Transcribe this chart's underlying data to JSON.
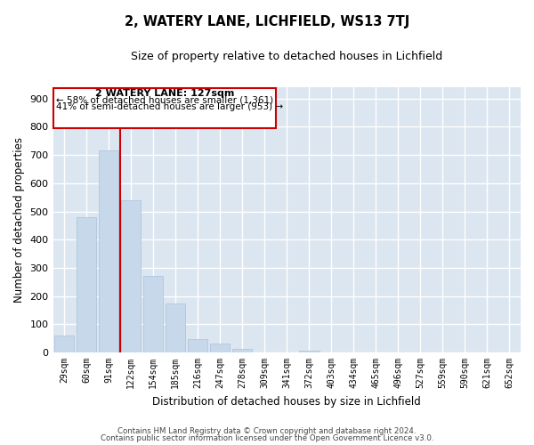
{
  "title": "2, WATERY LANE, LICHFIELD, WS13 7TJ",
  "subtitle": "Size of property relative to detached houses in Lichfield",
  "xlabel": "Distribution of detached houses by size in Lichfield",
  "ylabel": "Number of detached properties",
  "bar_labels": [
    "29sqm",
    "60sqm",
    "91sqm",
    "122sqm",
    "154sqm",
    "185sqm",
    "216sqm",
    "247sqm",
    "278sqm",
    "309sqm",
    "341sqm",
    "372sqm",
    "403sqm",
    "434sqm",
    "465sqm",
    "496sqm",
    "527sqm",
    "559sqm",
    "590sqm",
    "621sqm",
    "652sqm"
  ],
  "bar_values": [
    60,
    480,
    715,
    540,
    270,
    175,
    48,
    33,
    14,
    0,
    0,
    7,
    0,
    0,
    0,
    0,
    0,
    0,
    0,
    0,
    0
  ],
  "bar_color": "#c8d8eb",
  "bar_edge_color": "#a8c0dc",
  "grid_color": "#ffffff",
  "bg_color": "#dce6f0",
  "vline_x": 2.5,
  "annotation_line1": "2 WATERY LANE: 127sqm",
  "annotation_line2": "← 58% of detached houses are smaller (1,361)",
  "annotation_line3": "41% of semi-detached houses are larger (953) →",
  "vline_color": "#cc0000",
  "box_edge_color": "#cc0000",
  "ylim": [
    0,
    940
  ],
  "yticks": [
    0,
    100,
    200,
    300,
    400,
    500,
    600,
    700,
    800,
    900
  ],
  "footer1": "Contains HM Land Registry data © Crown copyright and database right 2024.",
  "footer2": "Contains public sector information licensed under the Open Government Licence v3.0."
}
